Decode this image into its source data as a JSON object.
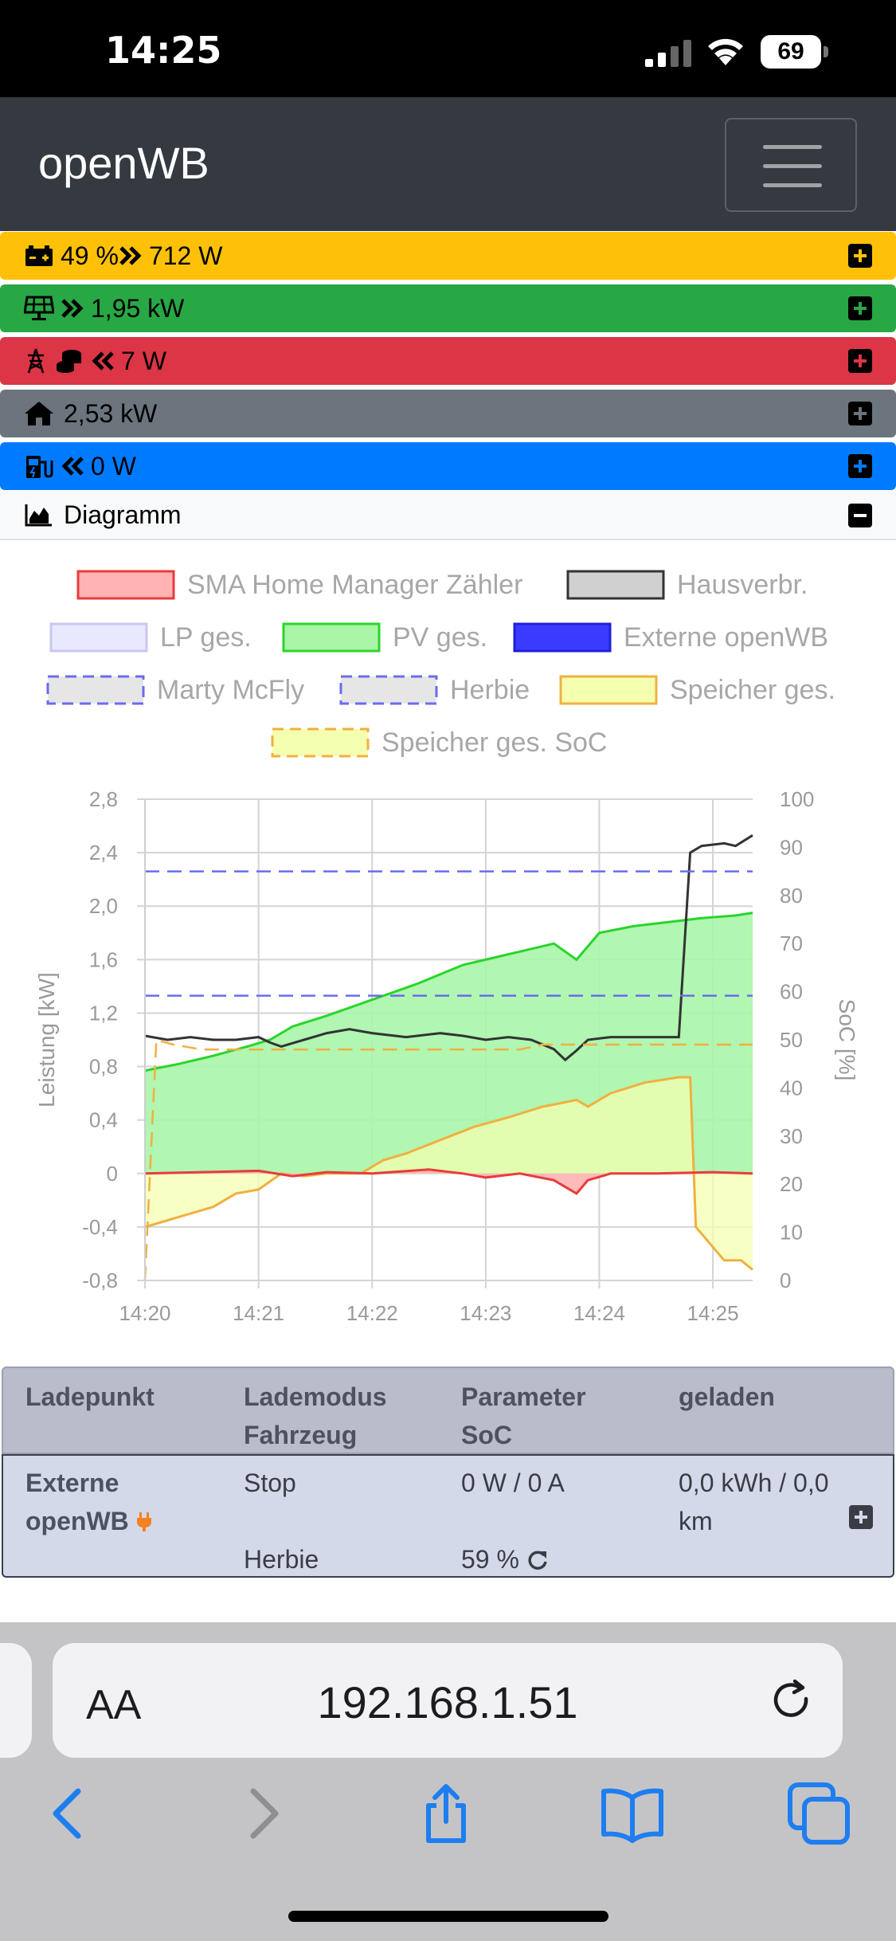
{
  "status_bar": {
    "time": "14:25",
    "battery": "69"
  },
  "navbar": {
    "brand": "openWB"
  },
  "summary_rows": [
    {
      "value": "49 % ",
      "extra": "712 W",
      "color": "#ffc107",
      "text_color": "#000000",
      "icon": "battery-icon"
    },
    {
      "value": "",
      "extra": "1,95 kW",
      "color": "#28a745",
      "text_color": "#000000",
      "icon": "solar-panel-icon"
    },
    {
      "value": "",
      "extra": "7 W",
      "color": "#dc3545",
      "text_color": "#000000",
      "icon": "power-grid-icon"
    },
    {
      "value": "",
      "extra": "2,53 kW",
      "color": "#6c757d",
      "text_color": "#000000",
      "icon": "home-icon"
    },
    {
      "value": "",
      "extra": "0 W",
      "color": "#007bff",
      "text_color": "#000000",
      "icon": "charging-station-icon"
    }
  ],
  "diagram_row": {
    "label": "Diagramm"
  },
  "chart_data": {
    "type": "area",
    "legend": [
      {
        "name": "SMA Home Manager Zähler",
        "fill": "#ffb3b3",
        "stroke": "#e83c3c",
        "dashed": false
      },
      {
        "name": "Hausverbr.",
        "fill": "#d0d0d0",
        "stroke": "#333333",
        "dashed": false
      },
      {
        "name": "LP ges.",
        "fill": "#e8e8ff",
        "stroke": "#c8c8f0",
        "dashed": false
      },
      {
        "name": "PV ges.",
        "fill": "#a8f5a8",
        "stroke": "#2bd42b",
        "dashed": false
      },
      {
        "name": "Externe openWB",
        "fill": "#3b3bff",
        "stroke": "#2020d8",
        "dashed": false
      },
      {
        "name": "Marty McFly",
        "fill": "#e6e6e6",
        "stroke": "#6b6bf0",
        "dashed": true
      },
      {
        "name": "Herbie",
        "fill": "#e6e6e6",
        "stroke": "#6b6bf0",
        "dashed": true
      },
      {
        "name": "Speicher ges.",
        "fill": "#f4ffb0",
        "stroke": "#f0b040",
        "dashed": false
      },
      {
        "name": "Speicher ges. SoC",
        "fill": "#f4ffb0",
        "stroke": "#f0b040",
        "dashed": true
      }
    ],
    "x_ticks": [
      "14:20",
      "14:21",
      "14:22",
      "14:23",
      "14:24",
      "14:25"
    ],
    "y_left_ticks": [
      "2,8",
      "2,4",
      "2,0",
      "1,6",
      "1,2",
      "0,8",
      "0,4",
      "0",
      "-0,4",
      "-0,8"
    ],
    "y_right_ticks": [
      "100",
      "90",
      "80",
      "70",
      "60",
      "50",
      "40",
      "30",
      "20",
      "10",
      "0"
    ],
    "ylabel": "Leistung [kW]",
    "ylabel_right": "SoC [%]",
    "ylim": [
      -0.8,
      2.8
    ],
    "ylim_right": [
      0,
      100
    ],
    "xlim": [
      0,
      5.35
    ],
    "series": [
      {
        "name": "PV ges.",
        "axis": "left",
        "x": [
          0,
          0.3,
          0.6,
          0.9,
          1.1,
          1.3,
          1.6,
          2.0,
          2.4,
          2.8,
          3.1,
          3.3,
          3.6,
          3.8,
          4.0,
          4.3,
          4.6,
          4.9,
          5.2,
          5.35
        ],
        "y": [
          0.77,
          0.82,
          0.88,
          0.95,
          1.0,
          1.1,
          1.18,
          1.3,
          1.42,
          1.56,
          1.62,
          1.66,
          1.72,
          1.6,
          1.8,
          1.85,
          1.88,
          1.91,
          1.93,
          1.95
        ]
      },
      {
        "name": "Speicher ges.",
        "axis": "left",
        "x": [
          0,
          0.2,
          0.4,
          0.6,
          0.8,
          1.0,
          1.2,
          1.4,
          1.6,
          1.8,
          1.9,
          2.1,
          2.3,
          2.6,
          2.9,
          3.2,
          3.5,
          3.8,
          3.9,
          4.1,
          4.4,
          4.7,
          4.8,
          4.85,
          5.1,
          5.25,
          5.35
        ],
        "y": [
          -0.4,
          -0.35,
          -0.3,
          -0.25,
          -0.15,
          -0.12,
          0.0,
          -0.02,
          0.0,
          0.0,
          0.0,
          0.1,
          0.15,
          0.25,
          0.35,
          0.42,
          0.5,
          0.55,
          0.5,
          0.6,
          0.68,
          0.72,
          0.72,
          -0.4,
          -0.65,
          -0.65,
          -0.72
        ]
      },
      {
        "name": "Hausverbr.",
        "axis": "left",
        "x": [
          0,
          0.2,
          0.4,
          0.6,
          0.8,
          1.0,
          1.1,
          1.2,
          1.4,
          1.6,
          1.8,
          2.0,
          2.3,
          2.6,
          2.8,
          3.0,
          3.2,
          3.4,
          3.6,
          3.7,
          3.8,
          3.9,
          4.1,
          4.3,
          4.5,
          4.7,
          4.8,
          4.9,
          5.1,
          5.2,
          5.35
        ],
        "y": [
          1.03,
          1.0,
          1.02,
          1.0,
          1.0,
          1.02,
          0.98,
          0.95,
          1.0,
          1.05,
          1.08,
          1.05,
          1.02,
          1.05,
          1.03,
          1.0,
          1.02,
          1.0,
          0.93,
          0.85,
          0.92,
          1.0,
          1.02,
          1.02,
          1.02,
          1.02,
          2.4,
          2.45,
          2.47,
          2.45,
          2.53
        ]
      },
      {
        "name": "SMA Home Manager Zähler",
        "axis": "left",
        "x": [
          0,
          0.5,
          1.0,
          1.3,
          1.6,
          2.0,
          2.5,
          2.8,
          3.0,
          3.3,
          3.6,
          3.8,
          3.9,
          4.1,
          4.5,
          5.0,
          5.35
        ],
        "y": [
          0.0,
          0.01,
          0.02,
          -0.02,
          0.01,
          0.0,
          0.03,
          0.0,
          -0.03,
          0.0,
          -0.05,
          -0.15,
          -0.05,
          0.0,
          0.0,
          0.01,
          0.0
        ]
      },
      {
        "name": "Marty McFly",
        "axis": "left",
        "x": [
          0,
          5.35
        ],
        "y": [
          2.26,
          2.26
        ]
      },
      {
        "name": "Herbie",
        "axis": "left",
        "x": [
          0,
          5.35
        ],
        "y": [
          1.33,
          1.33
        ]
      },
      {
        "name": "Speicher ges. SoC",
        "axis": "right",
        "x": [
          0,
          0.05,
          0.1,
          0.25,
          0.5,
          0.8,
          1.2,
          3.3,
          3.5,
          5.35
        ],
        "y": [
          0,
          25,
          50,
          49,
          48,
          48,
          48,
          48,
          49,
          49
        ]
      }
    ]
  },
  "lp_table": {
    "headers": [
      "Ladepunkt",
      "Lademodus",
      "Fahrzeug",
      "Parameter",
      "SoC",
      "geladen"
    ],
    "row": {
      "name_line1": "Externe",
      "name_line2": "openWB",
      "mode": "Stop",
      "vehicle": "Herbie",
      "params": "0 W / 0 A",
      "soc": "59 %",
      "charged_line1": "0,0 kWh / 0,0",
      "charged_line2": "km"
    }
  },
  "safari": {
    "aa": "AA",
    "url": "192.168.1.51"
  }
}
